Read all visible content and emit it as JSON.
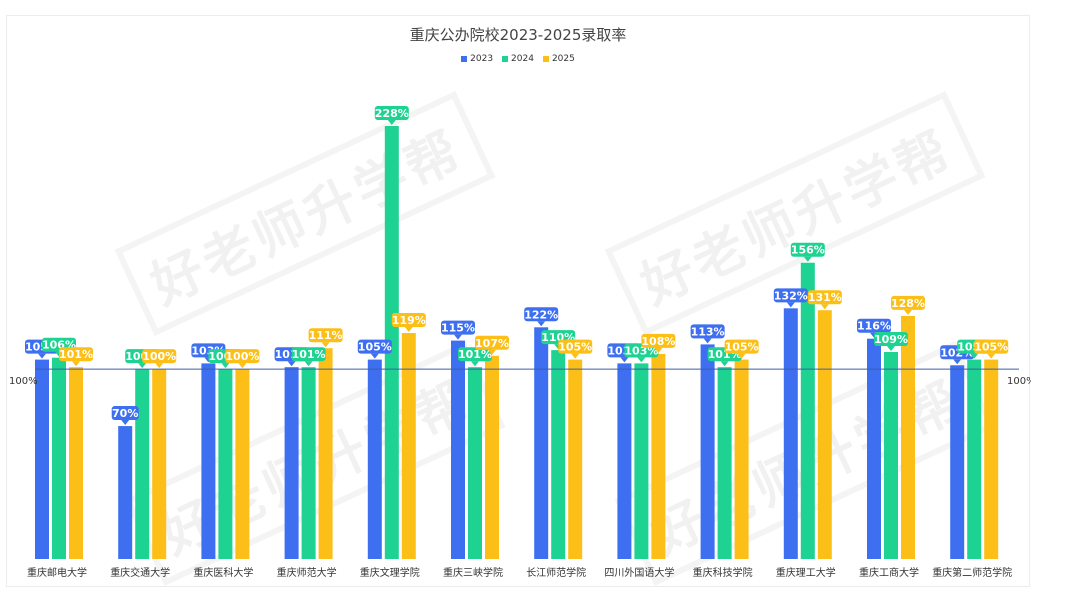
{
  "watermark_text": "好老师升学帮",
  "chart_data": {
    "type": "bar",
    "title": "重庆公办院校2023-2025录取率",
    "categories": [
      "重庆邮电大学",
      "重庆交通大学",
      "重庆医科大学",
      "重庆师范大学",
      "重庆文理学院",
      "重庆三峡学院",
      "长江师范学院",
      "四川外国语大学",
      "重庆科技学院",
      "重庆理工大学",
      "重庆工商大学",
      "重庆第二师范学院"
    ],
    "series": [
      {
        "name": "2023",
        "color": "#3d6ff0",
        "values": [
          105,
          70,
          103,
          101,
          105,
          115,
          122,
          103,
          113,
          132,
          116,
          102
        ]
      },
      {
        "name": "2024",
        "color": "#1ed391",
        "values": [
          106,
          100,
          100,
          101,
          228,
          101,
          110,
          103,
          101,
          156,
          109,
          105
        ]
      },
      {
        "name": "2025",
        "color": "#fcbf18",
        "values": [
          101,
          100,
          100,
          111,
          119,
          107,
          105,
          108,
          105,
          131,
          128,
          105
        ]
      }
    ],
    "reference_line": {
      "value": 100,
      "label_left": "100%",
      "label_right": "100%",
      "color": "#3d5fa8"
    },
    "value_suffix": "%",
    "ylim": [
      0,
      240
    ],
    "grid": false,
    "legend_position": "top-center"
  }
}
